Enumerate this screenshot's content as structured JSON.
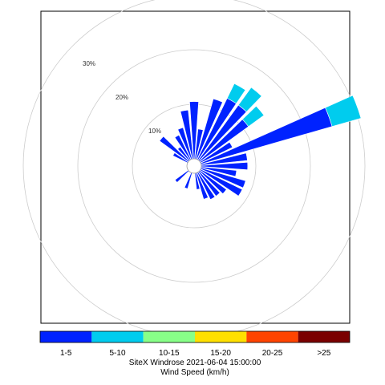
{
  "chart_data": {
    "type": "windrose",
    "title": "SiteX Windrose 2021-06-04 15:00:00",
    "legend_title": "Wind Speed (km/h)",
    "grid": true,
    "legend_placement": "bottom",
    "ring_labels": [
      "10%",
      "20%",
      "30%"
    ],
    "ring_values": [
      10,
      20,
      30
    ],
    "speed_bins": [
      {
        "label": "1-5",
        "color": "#0022ff"
      },
      {
        "label": "5-10",
        "color": "#00ccee"
      },
      {
        "label": "10-15",
        "color": "#88ff88"
      },
      {
        "label": "15-20",
        "color": "#ffe000"
      },
      {
        "label": "20-25",
        "color": "#ff4400"
      },
      {
        "label": ">25",
        "color": "#7a0000"
      }
    ],
    "sectors": [
      {
        "direction_deg": 0,
        "values": [
          10.5,
          0
        ]
      },
      {
        "direction_deg": 10,
        "values": [
          5.5,
          0
        ]
      },
      {
        "direction_deg": 20,
        "values": [
          11.5,
          0
        ]
      },
      {
        "direction_deg": 30,
        "values": [
          12.5,
          3.0
        ]
      },
      {
        "direction_deg": 40,
        "values": [
          12.5,
          4.0
        ]
      },
      {
        "direction_deg": 50,
        "values": [
          11.0,
          3.5
        ]
      },
      {
        "direction_deg": 60,
        "values": [
          6.5,
          0
        ]
      },
      {
        "direction_deg": 70,
        "values": [
          25.0,
          5.5
        ]
      },
      {
        "direction_deg": 80,
        "values": [
          8.5,
          0
        ]
      },
      {
        "direction_deg": 90,
        "values": [
          8.5,
          0
        ]
      },
      {
        "direction_deg": 100,
        "values": [
          6.5,
          0
        ]
      },
      {
        "direction_deg": 110,
        "values": [
          8.5,
          0
        ]
      },
      {
        "direction_deg": 120,
        "values": [
          8.5,
          0
        ]
      },
      {
        "direction_deg": 130,
        "values": [
          6.0,
          0
        ]
      },
      {
        "direction_deg": 140,
        "values": [
          5.5,
          0
        ]
      },
      {
        "direction_deg": 150,
        "values": [
          5.5,
          0
        ]
      },
      {
        "direction_deg": 160,
        "values": [
          5.0,
          0
        ]
      },
      {
        "direction_deg": 170,
        "values": [
          3.0,
          0
        ]
      },
      {
        "direction_deg": 180,
        "values": [
          0,
          0
        ]
      },
      {
        "direction_deg": 190,
        "values": [
          0,
          0
        ]
      },
      {
        "direction_deg": 200,
        "values": [
          3.0,
          0
        ]
      },
      {
        "direction_deg": 210,
        "values": [
          0,
          0
        ]
      },
      {
        "direction_deg": 220,
        "values": [
          0,
          0
        ]
      },
      {
        "direction_deg": 230,
        "values": [
          3.0,
          0
        ]
      },
      {
        "direction_deg": 240,
        "values": [
          0,
          0
        ]
      },
      {
        "direction_deg": 250,
        "values": [
          0,
          0
        ]
      },
      {
        "direction_deg": 260,
        "values": [
          0,
          0
        ]
      },
      {
        "direction_deg": 270,
        "values": [
          0,
          0
        ]
      },
      {
        "direction_deg": 280,
        "values": [
          0,
          0
        ]
      },
      {
        "direction_deg": 290,
        "values": [
          0,
          0
        ]
      },
      {
        "direction_deg": 300,
        "values": [
          3.0,
          0
        ]
      },
      {
        "direction_deg": 310,
        "values": [
          6.5,
          0
        ]
      },
      {
        "direction_deg": 320,
        "values": [
          3.0,
          0
        ]
      },
      {
        "direction_deg": 330,
        "values": [
          5.0,
          0
        ]
      },
      {
        "direction_deg": 340,
        "values": [
          6.0,
          0
        ]
      },
      {
        "direction_deg": 350,
        "values": [
          9.0,
          0
        ]
      }
    ]
  }
}
